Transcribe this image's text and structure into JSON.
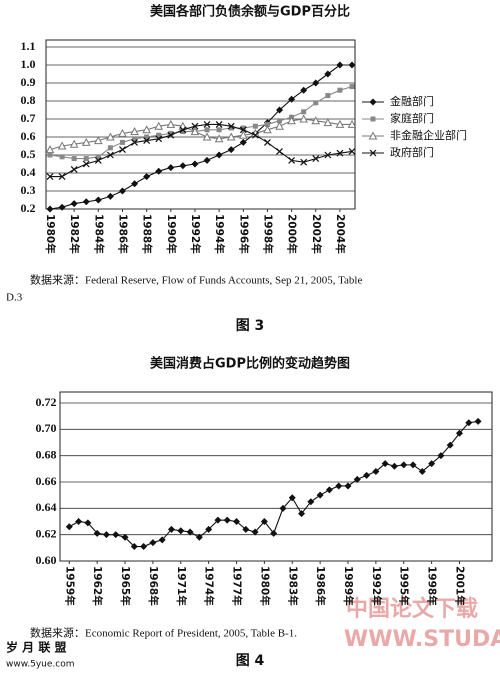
{
  "chart_data": [
    {
      "type": "line",
      "title": "美国各部门负债余额与GDP百分比",
      "x": [
        1980,
        1981,
        1982,
        1983,
        1984,
        1985,
        1986,
        1987,
        1988,
        1989,
        1990,
        1991,
        1992,
        1993,
        1994,
        1995,
        1996,
        1997,
        1998,
        1999,
        2000,
        2001,
        2002,
        2003,
        2004,
        2005
      ],
      "series": [
        {
          "name": "金融部门",
          "color": "#111111",
          "marker": "diamond",
          "values": [
            0.2,
            0.21,
            0.23,
            0.24,
            0.25,
            0.27,
            0.3,
            0.34,
            0.38,
            0.41,
            0.43,
            0.44,
            0.45,
            0.47,
            0.5,
            0.53,
            0.57,
            0.62,
            0.68,
            0.75,
            0.81,
            0.86,
            0.9,
            0.95,
            1.0,
            1.0
          ]
        },
        {
          "name": "家庭部门",
          "color": "#888888",
          "marker": "square",
          "values": [
            0.5,
            0.49,
            0.48,
            0.48,
            0.49,
            0.54,
            0.57,
            0.59,
            0.6,
            0.61,
            0.62,
            0.63,
            0.63,
            0.64,
            0.64,
            0.65,
            0.65,
            0.66,
            0.67,
            0.69,
            0.71,
            0.74,
            0.79,
            0.83,
            0.86,
            0.88
          ]
        },
        {
          "name": "非金融企业部门",
          "color": "#777777",
          "marker": "triangle",
          "values": [
            0.53,
            0.55,
            0.56,
            0.57,
            0.58,
            0.6,
            0.62,
            0.63,
            0.64,
            0.66,
            0.67,
            0.66,
            0.63,
            0.6,
            0.59,
            0.6,
            0.61,
            0.62,
            0.64,
            0.66,
            0.69,
            0.7,
            0.69,
            0.68,
            0.67,
            0.67
          ]
        },
        {
          "name": "政府部门",
          "color": "#111111",
          "marker": "cross",
          "values": [
            0.38,
            0.38,
            0.42,
            0.45,
            0.47,
            0.5,
            0.53,
            0.57,
            0.58,
            0.59,
            0.61,
            0.64,
            0.66,
            0.67,
            0.67,
            0.66,
            0.64,
            0.61,
            0.57,
            0.52,
            0.47,
            0.46,
            0.48,
            0.5,
            0.51,
            0.52
          ]
        }
      ],
      "xlim": [
        1980,
        2005
      ],
      "xticks": [
        {
          "value": 1980,
          "label": "1980年"
        },
        {
          "value": 1982,
          "label": "1982年"
        },
        {
          "value": 1984,
          "label": "1984年"
        },
        {
          "value": 1986,
          "label": "1986年"
        },
        {
          "value": 1988,
          "label": "1988年"
        },
        {
          "value": 1990,
          "label": "1990年"
        },
        {
          "value": 1992,
          "label": "1992年"
        },
        {
          "value": 1994,
          "label": "1994年"
        },
        {
          "value": 1996,
          "label": "1996年"
        },
        {
          "value": 1998,
          "label": "1998年"
        },
        {
          "value": 2000,
          "label": "2000年"
        },
        {
          "value": 2002,
          "label": "2002年"
        },
        {
          "value": 2004,
          "label": "2004年"
        }
      ],
      "ylim": [
        0.2,
        1.1
      ],
      "yticks": [
        0.2,
        0.3,
        0.4,
        0.5,
        0.6,
        0.7,
        0.8,
        0.9,
        {
          "value": 1.0,
          "label": "1.0"
        },
        1.1
      ],
      "grid": true,
      "legend": "right"
    },
    {
      "type": "line",
      "title": "美国消费占GDP比例的变动趋势图",
      "x": [
        1959,
        1960,
        1961,
        1962,
        1963,
        1964,
        1965,
        1966,
        1967,
        1968,
        1969,
        1970,
        1971,
        1972,
        1973,
        1974,
        1975,
        1976,
        1977,
        1978,
        1979,
        1980,
        1981,
        1982,
        1983,
        1984,
        1985,
        1986,
        1987,
        1988,
        1989,
        1990,
        1991,
        1992,
        1993,
        1994,
        1995,
        1996,
        1997,
        1998,
        1999,
        2000,
        2001,
        2002,
        2003
      ],
      "series": [
        {
          "color": "#111111",
          "marker": "diamond",
          "values": [
            0.626,
            0.63,
            0.629,
            0.621,
            0.62,
            0.62,
            0.618,
            0.611,
            0.611,
            0.614,
            0.616,
            0.624,
            0.623,
            0.622,
            0.618,
            0.624,
            0.631,
            0.631,
            0.63,
            0.624,
            0.622,
            0.63,
            0.621,
            0.64,
            0.648,
            0.636,
            0.645,
            0.65,
            0.654,
            0.657,
            0.657,
            0.662,
            0.665,
            0.668,
            0.674,
            0.672,
            0.673,
            0.673,
            0.668,
            0.674,
            0.68,
            0.688,
            0.697,
            0.705,
            0.706
          ]
        }
      ],
      "xlim": [
        1958,
        2004.5
      ],
      "xticks": [
        {
          "value": 1959,
          "label": "1959年"
        },
        {
          "value": 1962,
          "label": "1962年"
        },
        {
          "value": 1965,
          "label": "1965年"
        },
        {
          "value": 1968,
          "label": "1968年"
        },
        {
          "value": 1971,
          "label": "1971年"
        },
        {
          "value": 1974,
          "label": "1974年"
        },
        {
          "value": 1977,
          "label": "1977年"
        },
        {
          "value": 1980,
          "label": "1980年"
        },
        {
          "value": 1983,
          "label": "1983年"
        },
        {
          "value": 1986,
          "label": "1986年"
        },
        {
          "value": 1989,
          "label": "1989年"
        },
        {
          "value": 1992,
          "label": "1992年"
        },
        {
          "value": 1995,
          "label": "1995年"
        },
        {
          "value": 1998,
          "label": "1998年"
        },
        {
          "value": 2001,
          "label": "2001年"
        }
      ],
      "ylim": [
        0.6,
        0.72
      ],
      "yticks": [
        {
          "value": 0.6,
          "label": "0.60"
        },
        0.62,
        0.64,
        0.66,
        0.68,
        {
          "value": 0.7,
          "label": "0.70"
        },
        0.72
      ],
      "grid": true
    }
  ],
  "notes": {
    "source_1a": "数据来源：Federal Reserve, Flow of Funds Accounts, Sep 21, 2005, Table",
    "source_1b": "D.3",
    "caption_1": "图 3",
    "source_2": "数据来源：Economic Report of President, 2005, Table B-1.",
    "caption_2": "图 4",
    "watermark_cn": "中国论文下载",
    "watermark_url": "WWW.STUDA.",
    "logo_name": "岁 月 联 盟",
    "logo_url": "www.5yue.com"
  }
}
